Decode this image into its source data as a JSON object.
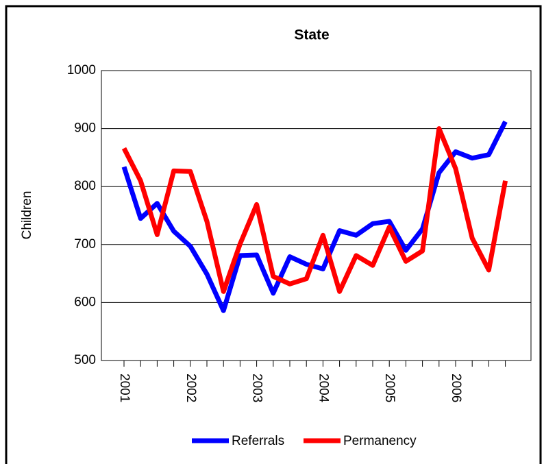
{
  "chart_data": {
    "type": "line",
    "title": "State",
    "y_label": "Children",
    "categories": [
      "2001",
      null,
      null,
      null,
      "2002",
      null,
      null,
      null,
      "2003",
      null,
      null,
      null,
      "2004",
      null,
      null,
      null,
      "2005",
      null,
      null,
      null,
      "2006",
      null,
      null,
      null
    ],
    "series": [
      {
        "name": "Referrals",
        "color": "#0000ff",
        "values": [
          834,
          745,
          771,
          723,
          697,
          649,
          586,
          681,
          682,
          616,
          679,
          666,
          658,
          724,
          716,
          736,
          740,
          690,
          727,
          824,
          860,
          849,
          855,
          912
        ]
      },
      {
        "name": "Permanency",
        "color": "#ff0000",
        "values": [
          866,
          810,
          717,
          827,
          826,
          740,
          619,
          701,
          769,
          645,
          632,
          641,
          716,
          619,
          681,
          664,
          730,
          671,
          689,
          900,
          831,
          711,
          656,
          810
        ]
      }
    ],
    "ylim": [
      500,
      1000
    ],
    "yticks": [
      500,
      600,
      700,
      800,
      900,
      1000
    ],
    "grid": true,
    "legend": "bottom"
  }
}
